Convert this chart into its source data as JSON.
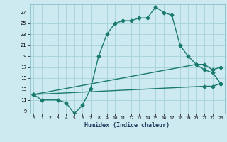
{
  "xlabel": "Humidex (Indice chaleur)",
  "bg_color": "#cceaf0",
  "grid_color": "#aad4dc",
  "line_color": "#1a7a6e",
  "line1_x": [
    0,
    1,
    3,
    4,
    5,
    6,
    7,
    8,
    9,
    10,
    11,
    12,
    13,
    14,
    15,
    16,
    17,
    18,
    19,
    20,
    21,
    22,
    23
  ],
  "line1_y": [
    12,
    11,
    11,
    10.5,
    8.5,
    10,
    13,
    19,
    23,
    25,
    25.5,
    25.5,
    26,
    26,
    28,
    27,
    26.5,
    21,
    19,
    17.5,
    16.5,
    16,
    14
  ],
  "line2_x": [
    0,
    20,
    21,
    22,
    23
  ],
  "line2_y": [
    12,
    17.5,
    17.5,
    16.5,
    17.0
  ],
  "line3_x": [
    0,
    21,
    22,
    23
  ],
  "line3_y": [
    12,
    13.5,
    13.5,
    14
  ],
  "xlim": [
    -0.5,
    23.5
  ],
  "ylim": [
    8.5,
    28.5
  ],
  "yticks": [
    9,
    11,
    13,
    15,
    17,
    19,
    21,
    23,
    25,
    27
  ],
  "xticks": [
    0,
    1,
    2,
    3,
    4,
    5,
    6,
    7,
    8,
    9,
    10,
    11,
    12,
    13,
    14,
    15,
    16,
    17,
    18,
    19,
    20,
    21,
    22,
    23
  ],
  "marker": "D",
  "markersize": 2.5,
  "linewidth": 1.0
}
